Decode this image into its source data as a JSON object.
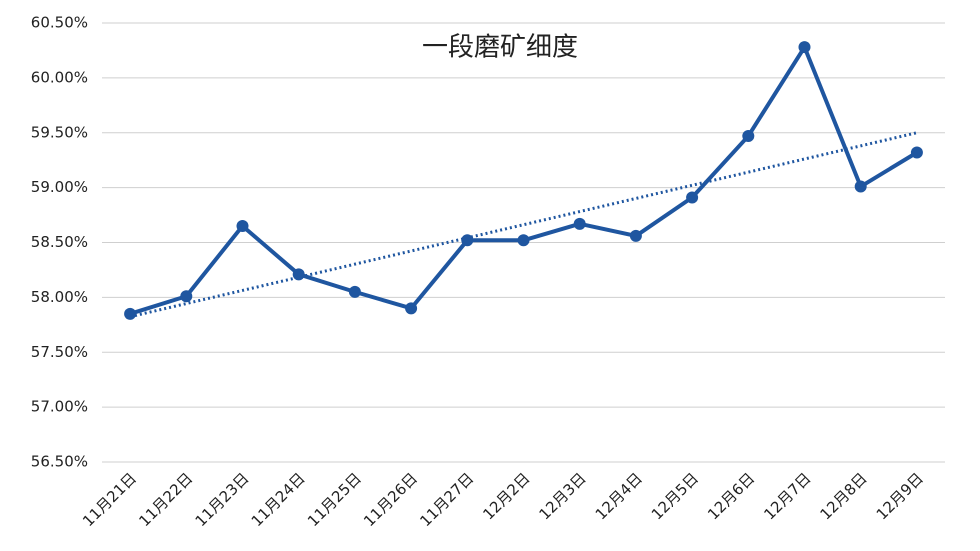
{
  "chart_data": {
    "type": "line",
    "title": "一段磨矿细度",
    "categories": [
      "11月21日",
      "11月22日",
      "11月23日",
      "11月24日",
      "11月25日",
      "11月26日",
      "11月27日",
      "12月2日",
      "12月3日",
      "12月4日",
      "12月5日",
      "12月6日",
      "12月7日",
      "12月8日",
      "12月9日"
    ],
    "values": [
      57.85,
      58.01,
      58.65,
      58.21,
      58.05,
      57.9,
      58.52,
      58.52,
      58.67,
      58.56,
      58.91,
      59.47,
      60.28,
      59.01,
      59.32
    ],
    "color": "#1f56a0",
    "trendline": true,
    "ylim": [
      56.5,
      60.5
    ],
    "yticks": [
      {
        "value": 56.5,
        "label": "56.50%"
      },
      {
        "value": 57,
        "label": "57.00%"
      },
      {
        "value": 57.5,
        "label": "57.50%"
      },
      {
        "value": 58,
        "label": "58.00%"
      },
      {
        "value": 58.5,
        "label": "58.50%"
      },
      {
        "value": 59,
        "label": "59.00%"
      },
      {
        "value": 59.5,
        "label": "59.50%"
      },
      {
        "value": 60,
        "label": "60.00%"
      },
      {
        "value": 60.5,
        "label": "60.50%"
      }
    ],
    "grid": true
  }
}
